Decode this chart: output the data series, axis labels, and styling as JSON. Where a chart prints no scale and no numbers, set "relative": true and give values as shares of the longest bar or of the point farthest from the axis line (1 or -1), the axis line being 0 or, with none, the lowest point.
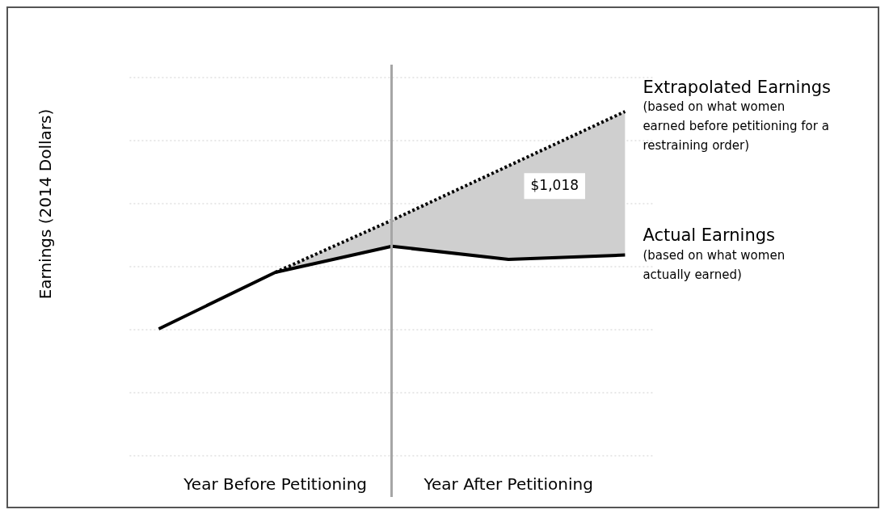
{
  "chart_data": {
    "type": "line",
    "ylabel": "Earnings (2014 Dollars)",
    "relative": true,
    "categories": [
      null,
      "Year Before Petitioning",
      null,
      "Year After Petitioning",
      null
    ],
    "series": [
      {
        "name": "Extrapolated Earnings",
        "color": "#000000",
        "line_style": "dotted",
        "values": [
          null,
          0.26,
          0.5,
          0.75,
          1
        ],
        "lower": [
          null,
          0.26,
          0.38,
          0.32,
          0.34
        ],
        "upper": [
          null,
          0.26,
          0.5,
          0.75,
          1
        ]
      },
      {
        "name": "Actual Earnings",
        "color": "#000000",
        "line_style": "solid",
        "values": [
          0,
          0.26,
          0.38,
          0.32,
          0.34
        ]
      }
    ],
    "annotations": [
      "$1,018",
      "(based on what women earned before petitioning for a restraining order)",
      "(based on what women actually earned)"
    ],
    "grid": "y",
    "legend": false,
    "marker": "none"
  }
}
